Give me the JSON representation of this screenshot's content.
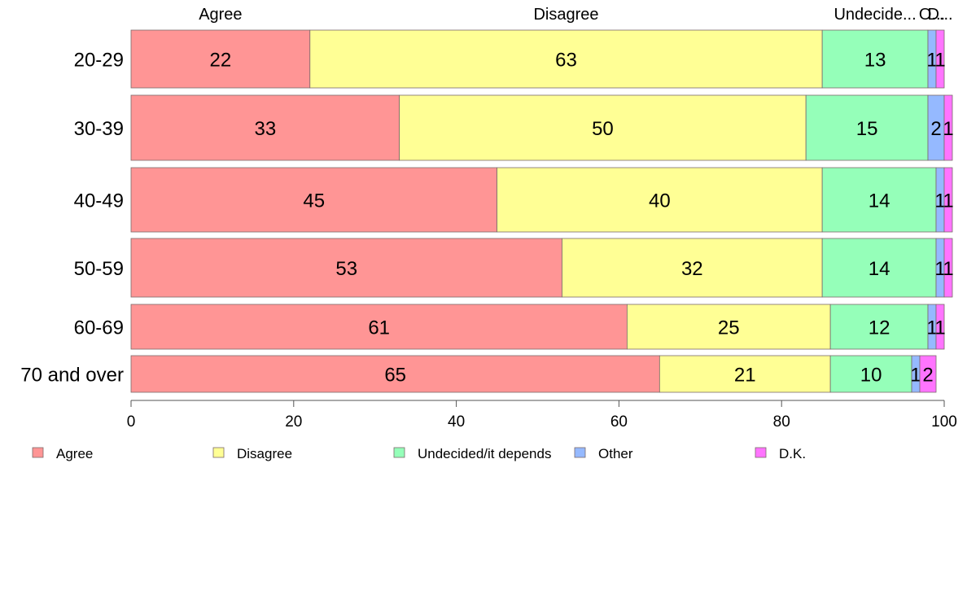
{
  "chart_data": {
    "type": "bar",
    "orientation": "horizontal",
    "stacked": true,
    "categories": [
      "20-29",
      "30-39",
      "40-49",
      "50-59",
      "60-69",
      "70 and over"
    ],
    "series": [
      {
        "name": "Agree",
        "values": [
          22,
          33,
          45,
          53,
          61,
          65
        ],
        "color": "#ff9595"
      },
      {
        "name": "Disagree",
        "values": [
          63,
          50,
          40,
          32,
          25,
          21
        ],
        "color": "#ffff95"
      },
      {
        "name": "Undecided/it depends",
        "values": [
          13,
          15,
          14,
          14,
          12,
          10
        ],
        "color": "#95ffb9"
      },
      {
        "name": "Other",
        "values": [
          1,
          2,
          1,
          1,
          1,
          1
        ],
        "color": "#95b9ff"
      },
      {
        "name": "D.K.",
        "values": [
          1,
          1,
          1,
          1,
          1,
          2
        ],
        "color": "#ff74ff"
      }
    ],
    "top_labels": [
      "Agree",
      "Disagree",
      "Undecide...",
      "O...",
      "D..."
    ],
    "xlim": [
      0,
      100
    ],
    "x_ticks": [
      0,
      20,
      40,
      60,
      80,
      100
    ],
    "grid": false,
    "legend_position": "bottom"
  }
}
